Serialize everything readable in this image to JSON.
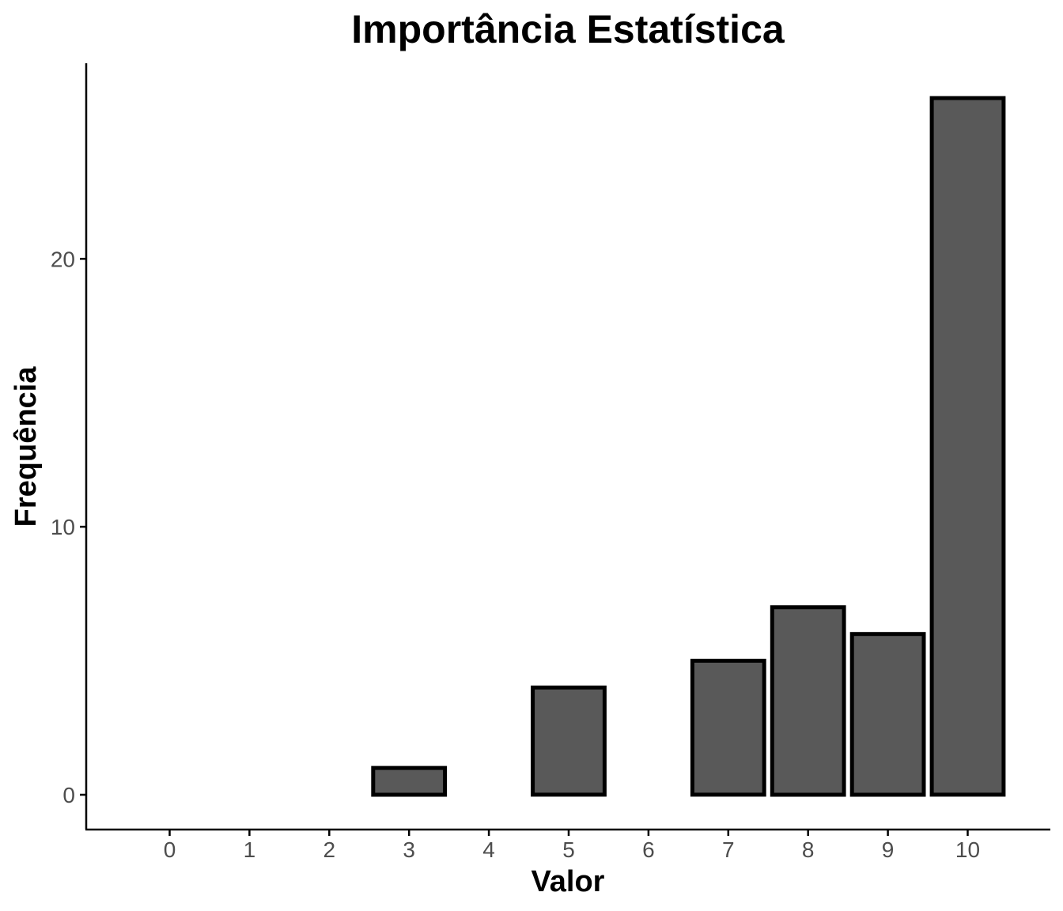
{
  "chart_data": {
    "type": "bar",
    "title": "Importância Estatística",
    "xlabel": "Valor",
    "ylabel": "Frequência",
    "categories": [
      "0",
      "1",
      "2",
      "3",
      "4",
      "5",
      "6",
      "7",
      "8",
      "9",
      "10"
    ],
    "values": [
      0,
      0,
      0,
      1,
      0,
      4,
      0,
      5,
      7,
      6,
      26
    ],
    "ylim": [
      -1.3,
      27.3
    ],
    "yticks": [
      0,
      10,
      20
    ],
    "grid": false,
    "legend": "none",
    "colors": {
      "bar_fill": "#595959",
      "bar_outline": "#000000",
      "axis_line": "#000000",
      "tick_label": "#4d4d4d"
    }
  }
}
